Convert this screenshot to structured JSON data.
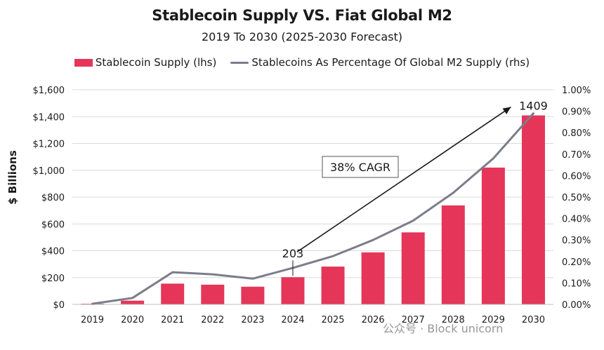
{
  "chart_data": {
    "type": "bar",
    "title": "Stablecoin Supply VS. Fiat Global M2",
    "subtitle": "2019 To 2030 (2025-2030 Forecast)",
    "ylabel": "$ Billions",
    "categories": [
      "2019",
      "2020",
      "2021",
      "2022",
      "2023",
      "2024",
      "2025",
      "2026",
      "2027",
      "2028",
      "2029",
      "2030"
    ],
    "ylim": [
      0,
      1600
    ],
    "y_ticks": [
      "$0",
      "$200",
      "$400",
      "$600",
      "$800",
      "$1,000",
      "$1,200",
      "$1,400",
      "$1,600"
    ],
    "y2lim": [
      0,
      1.0
    ],
    "y2_ticks": [
      "0.00%",
      "0.10%",
      "0.20%",
      "0.30%",
      "0.40%",
      "0.50%",
      "0.60%",
      "0.70%",
      "0.80%",
      "0.90%",
      "1.00%"
    ],
    "grid": true,
    "legend_position": "top",
    "series": [
      {
        "name": "Stablecoin Supply (lhs)",
        "type": "bar",
        "axis": "left",
        "color": "#e5365a",
        "values": [
          5,
          28,
          155,
          147,
          132,
          203,
          282,
          388,
          537,
          738,
          1020,
          1409
        ]
      },
      {
        "name": "Stablecoins As Percentage Of Global M2 Supply (rhs)",
        "type": "line",
        "axis": "right",
        "color": "#7b7d8a",
        "values": [
          0.003,
          0.03,
          0.15,
          0.14,
          0.12,
          0.17,
          0.225,
          0.3,
          0.39,
          0.52,
          0.68,
          0.89
        ]
      }
    ],
    "annotations": {
      "start_label": "203",
      "end_label": "1409",
      "cagr_label": "38% CAGR"
    }
  },
  "watermark": "公众号 · Block unicorn"
}
